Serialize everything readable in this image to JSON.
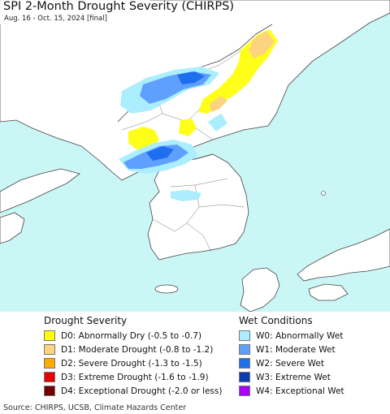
{
  "header": {
    "title": "SPI 2-Month Drought Severity (CHIRPS)",
    "subtitle": "Aug. 16 - Oct. 15, 2024 [final]"
  },
  "colors": {
    "sea": "#cbf6f6",
    "land": "#ffffff",
    "border": "#444444"
  },
  "legend": {
    "drought": {
      "heading": "Drought Severity",
      "items": [
        {
          "code": "D0",
          "label": "D0: Abnormally Dry (-0.5 to -0.7)",
          "color": "#ffff00"
        },
        {
          "code": "D1",
          "label": "D1: Moderate Drought (-0.8 to -1.2)",
          "color": "#fcd37f"
        },
        {
          "code": "D2",
          "label": "D2: Severe Drought (-1.3 to -1.5)",
          "color": "#ffaa00"
        },
        {
          "code": "D3",
          "label": "D3: Extreme Drought (-1.6 to -1.9)",
          "color": "#e60000"
        },
        {
          "code": "D4",
          "label": "D4: Exceptional Drought (-2.0 or less)",
          "color": "#730000"
        }
      ]
    },
    "wet": {
      "heading": "Wet Conditions",
      "items": [
        {
          "code": "W0",
          "label": "W0: Abnormally Wet",
          "color": "#aaeeff"
        },
        {
          "code": "W1",
          "label": "W1: Moderate Wet",
          "color": "#5fa0ff"
        },
        {
          "code": "W2",
          "label": "W2: Severe Wet",
          "color": "#1e6ef0"
        },
        {
          "code": "W3",
          "label": "W3: Extreme Wet",
          "color": "#0a3cb4"
        },
        {
          "code": "W4",
          "label": "W4: Exceptional Wet",
          "color": "#aa00ff"
        }
      ]
    }
  },
  "footer": {
    "source": "Source: CHIRPS, UCSB, Climate Hazards Center"
  }
}
